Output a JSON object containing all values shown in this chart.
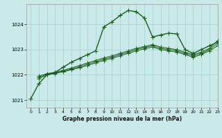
{
  "title": "Graphe pression niveau de la mer (hPa)",
  "bg_color": "#caeaea",
  "grid_color": "#aad4d4",
  "line_color": "#1a5c1a",
  "xlim": [
    -0.5,
    23
  ],
  "ylim": [
    1020.7,
    1024.8
  ],
  "yticks": [
    1021,
    1022,
    1023,
    1024
  ],
  "xticks": [
    0,
    1,
    2,
    3,
    4,
    5,
    6,
    7,
    8,
    9,
    10,
    11,
    12,
    13,
    14,
    15,
    16,
    17,
    18,
    19,
    20,
    21,
    22,
    23
  ],
  "series1_x": [
    0,
    1,
    2,
    3,
    4,
    5,
    6,
    7,
    8,
    9,
    10,
    11,
    12,
    13,
    14,
    15,
    16,
    17,
    18,
    19,
    20,
    21,
    22,
    23
  ],
  "series1_y": [
    1021.05,
    1021.65,
    1022.0,
    1022.1,
    1022.3,
    1022.5,
    1022.65,
    1022.8,
    1022.95,
    1023.9,
    1024.1,
    1024.35,
    1024.55,
    1024.5,
    1024.25,
    1023.5,
    1023.58,
    1023.65,
    1023.62,
    1023.0,
    1022.85,
    1023.0,
    1023.15,
    1023.3
  ],
  "series2_x": [
    1,
    2,
    3,
    4,
    5,
    6,
    7,
    8,
    9,
    10,
    11,
    12,
    13,
    14,
    15,
    16,
    17,
    18,
    19,
    20,
    21,
    22,
    23
  ],
  "series2_y": [
    1021.95,
    1022.05,
    1022.1,
    1022.18,
    1022.27,
    1022.37,
    1022.47,
    1022.57,
    1022.67,
    1022.75,
    1022.85,
    1022.95,
    1023.05,
    1023.12,
    1023.2,
    1023.1,
    1023.05,
    1023.0,
    1022.9,
    1022.8,
    1022.9,
    1023.05,
    1023.35
  ],
  "series3_x": [
    1,
    2,
    3,
    4,
    5,
    6,
    7,
    8,
    9,
    10,
    11,
    12,
    13,
    14,
    15,
    16,
    17,
    18,
    19,
    20,
    21,
    22,
    23
  ],
  "series3_y": [
    1021.9,
    1022.02,
    1022.08,
    1022.15,
    1022.23,
    1022.32,
    1022.42,
    1022.52,
    1022.62,
    1022.7,
    1022.8,
    1022.9,
    1023.0,
    1023.08,
    1023.15,
    1023.05,
    1023.0,
    1022.95,
    1022.85,
    1022.75,
    1022.85,
    1023.0,
    1023.25
  ],
  "series4_x": [
    1,
    2,
    3,
    4,
    5,
    6,
    7,
    8,
    9,
    10,
    11,
    12,
    13,
    14,
    15,
    16,
    17,
    18,
    19,
    20,
    21,
    22,
    23
  ],
  "series4_y": [
    1021.85,
    1022.0,
    1022.05,
    1022.12,
    1022.2,
    1022.28,
    1022.37,
    1022.47,
    1022.57,
    1022.65,
    1022.75,
    1022.85,
    1022.95,
    1023.03,
    1023.1,
    1023.0,
    1022.95,
    1022.9,
    1022.8,
    1022.7,
    1022.8,
    1022.95,
    1023.15
  ]
}
